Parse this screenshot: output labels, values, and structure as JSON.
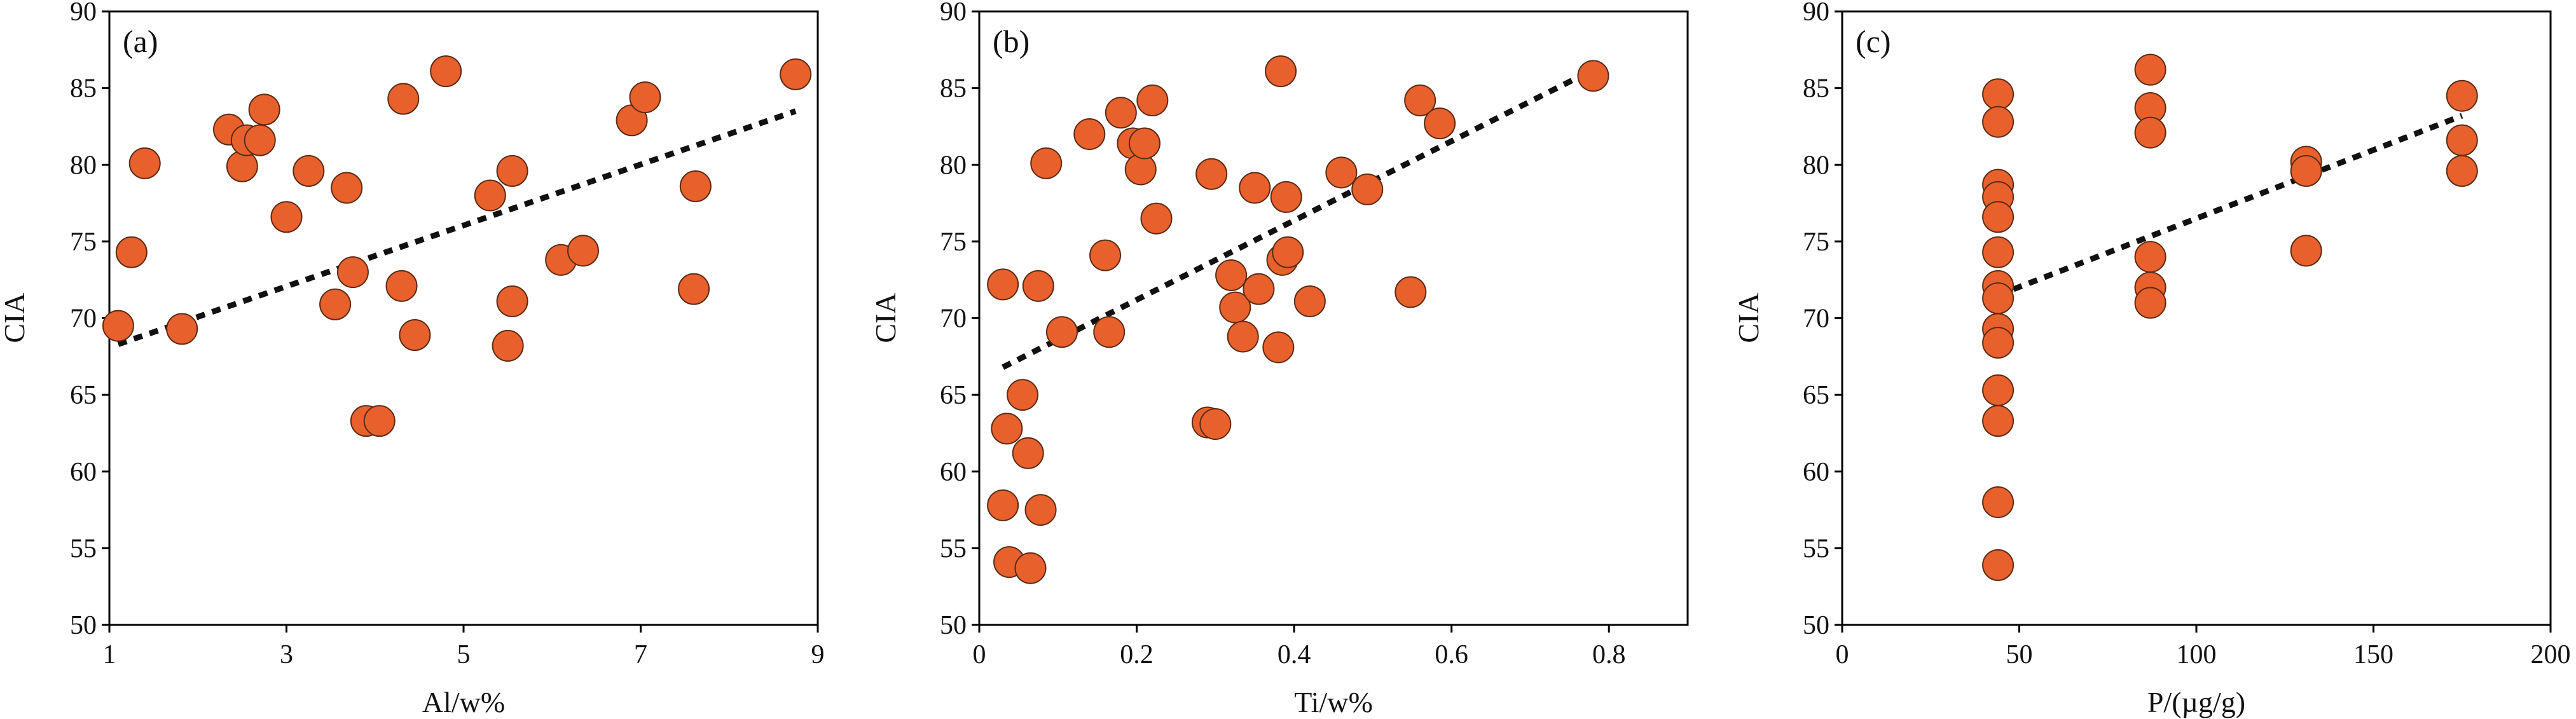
{
  "chart_data": [
    {
      "type": "scatter",
      "panel_label": "(a)",
      "xlabel": "Al/w%",
      "ylabel": "CIA",
      "xlim": [
        1,
        9
      ],
      "ylim": [
        50,
        90
      ],
      "xticks": [
        1,
        3,
        5,
        7,
        9
      ],
      "yticks": [
        50,
        55,
        60,
        65,
        70,
        75,
        80,
        85,
        90
      ],
      "x": [
        1.1,
        1.25,
        1.4,
        1.82,
        2.35,
        2.5,
        2.55,
        2.7,
        2.75,
        3.0,
        3.25,
        3.55,
        3.68,
        3.75,
        3.9,
        4.05,
        4.3,
        4.32,
        4.45,
        4.8,
        5.3,
        5.5,
        5.55,
        5.55,
        6.1,
        6.35,
        6.9,
        7.05,
        7.6,
        7.62,
        8.75
      ],
      "y": [
        69.5,
        74.3,
        80.1,
        69.3,
        82.3,
        79.9,
        81.6,
        81.6,
        83.6,
        76.6,
        79.6,
        70.9,
        78.5,
        73.0,
        63.3,
        63.3,
        72.1,
        84.3,
        68.9,
        86.1,
        78.0,
        68.2,
        79.6,
        71.1,
        73.8,
        74.4,
        82.9,
        84.4,
        71.9,
        78.6,
        85.9
      ],
      "trendline": {
        "x": [
          1.1,
          8.75
        ],
        "y": [
          68.3,
          83.5
        ]
      }
    },
    {
      "type": "scatter",
      "panel_label": "(b)",
      "xlabel": "Ti/w%",
      "ylabel": "CIA",
      "xlim": [
        0,
        0.9
      ],
      "ylim": [
        50,
        90
      ],
      "xticks": [
        0,
        0.2,
        0.4,
        0.6,
        0.8
      ],
      "xtick_labels": [
        "0",
        "0.2",
        "0.4",
        "0.6",
        "0.8"
      ],
      "yticks": [
        50,
        55,
        60,
        65,
        70,
        75,
        80,
        85,
        90
      ],
      "x": [
        0.03,
        0.03,
        0.035,
        0.038,
        0.055,
        0.062,
        0.065,
        0.075,
        0.078,
        0.085,
        0.105,
        0.14,
        0.16,
        0.165,
        0.18,
        0.195,
        0.205,
        0.21,
        0.22,
        0.225,
        0.29,
        0.295,
        0.3,
        0.32,
        0.325,
        0.335,
        0.35,
        0.355,
        0.38,
        0.383,
        0.385,
        0.39,
        0.392,
        0.42,
        0.46,
        0.493,
        0.548,
        0.56,
        0.585,
        0.78
      ],
      "y": [
        72.2,
        57.8,
        62.8,
        54.1,
        65.0,
        61.2,
        53.7,
        72.1,
        57.5,
        80.1,
        69.1,
        82.0,
        74.1,
        69.1,
        83.4,
        81.4,
        79.7,
        81.4,
        84.2,
        76.5,
        63.2,
        79.4,
        63.1,
        72.8,
        70.7,
        68.8,
        78.5,
        71.9,
        68.1,
        86.1,
        73.8,
        77.9,
        74.3,
        71.1,
        79.5,
        78.4,
        71.7,
        84.2,
        82.7,
        85.8
      ],
      "trendline": {
        "x": [
          0.03,
          0.78
        ],
        "y": [
          66.8,
          86.2
        ]
      }
    },
    {
      "type": "scatter",
      "panel_label": "(c)",
      "xlabel": "P/(µg/g)",
      "ylabel": "CIA",
      "xlim": [
        0,
        200
      ],
      "ylim": [
        50,
        90
      ],
      "xticks": [
        0,
        50,
        100,
        150,
        200
      ],
      "yticks": [
        50,
        55,
        60,
        65,
        70,
        75,
        80,
        85,
        90
      ],
      "x": [
        44,
        44,
        44,
        44,
        44,
        44,
        44,
        44,
        44,
        44,
        44,
        44,
        44,
        44,
        87,
        87,
        87,
        87,
        87,
        87,
        131,
        131,
        131,
        175,
        175,
        175
      ],
      "y": [
        84.6,
        82.8,
        78.7,
        77.9,
        76.6,
        74.3,
        72.1,
        71.3,
        69.3,
        68.4,
        65.3,
        63.3,
        58.0,
        53.9,
        86.2,
        83.7,
        82.1,
        74.0,
        72.0,
        71.0,
        80.2,
        79.6,
        74.4,
        84.5,
        81.6,
        79.6
      ],
      "trendline": {
        "x": [
          44,
          175
        ],
        "y": [
          71.5,
          83.2
        ]
      }
    }
  ]
}
